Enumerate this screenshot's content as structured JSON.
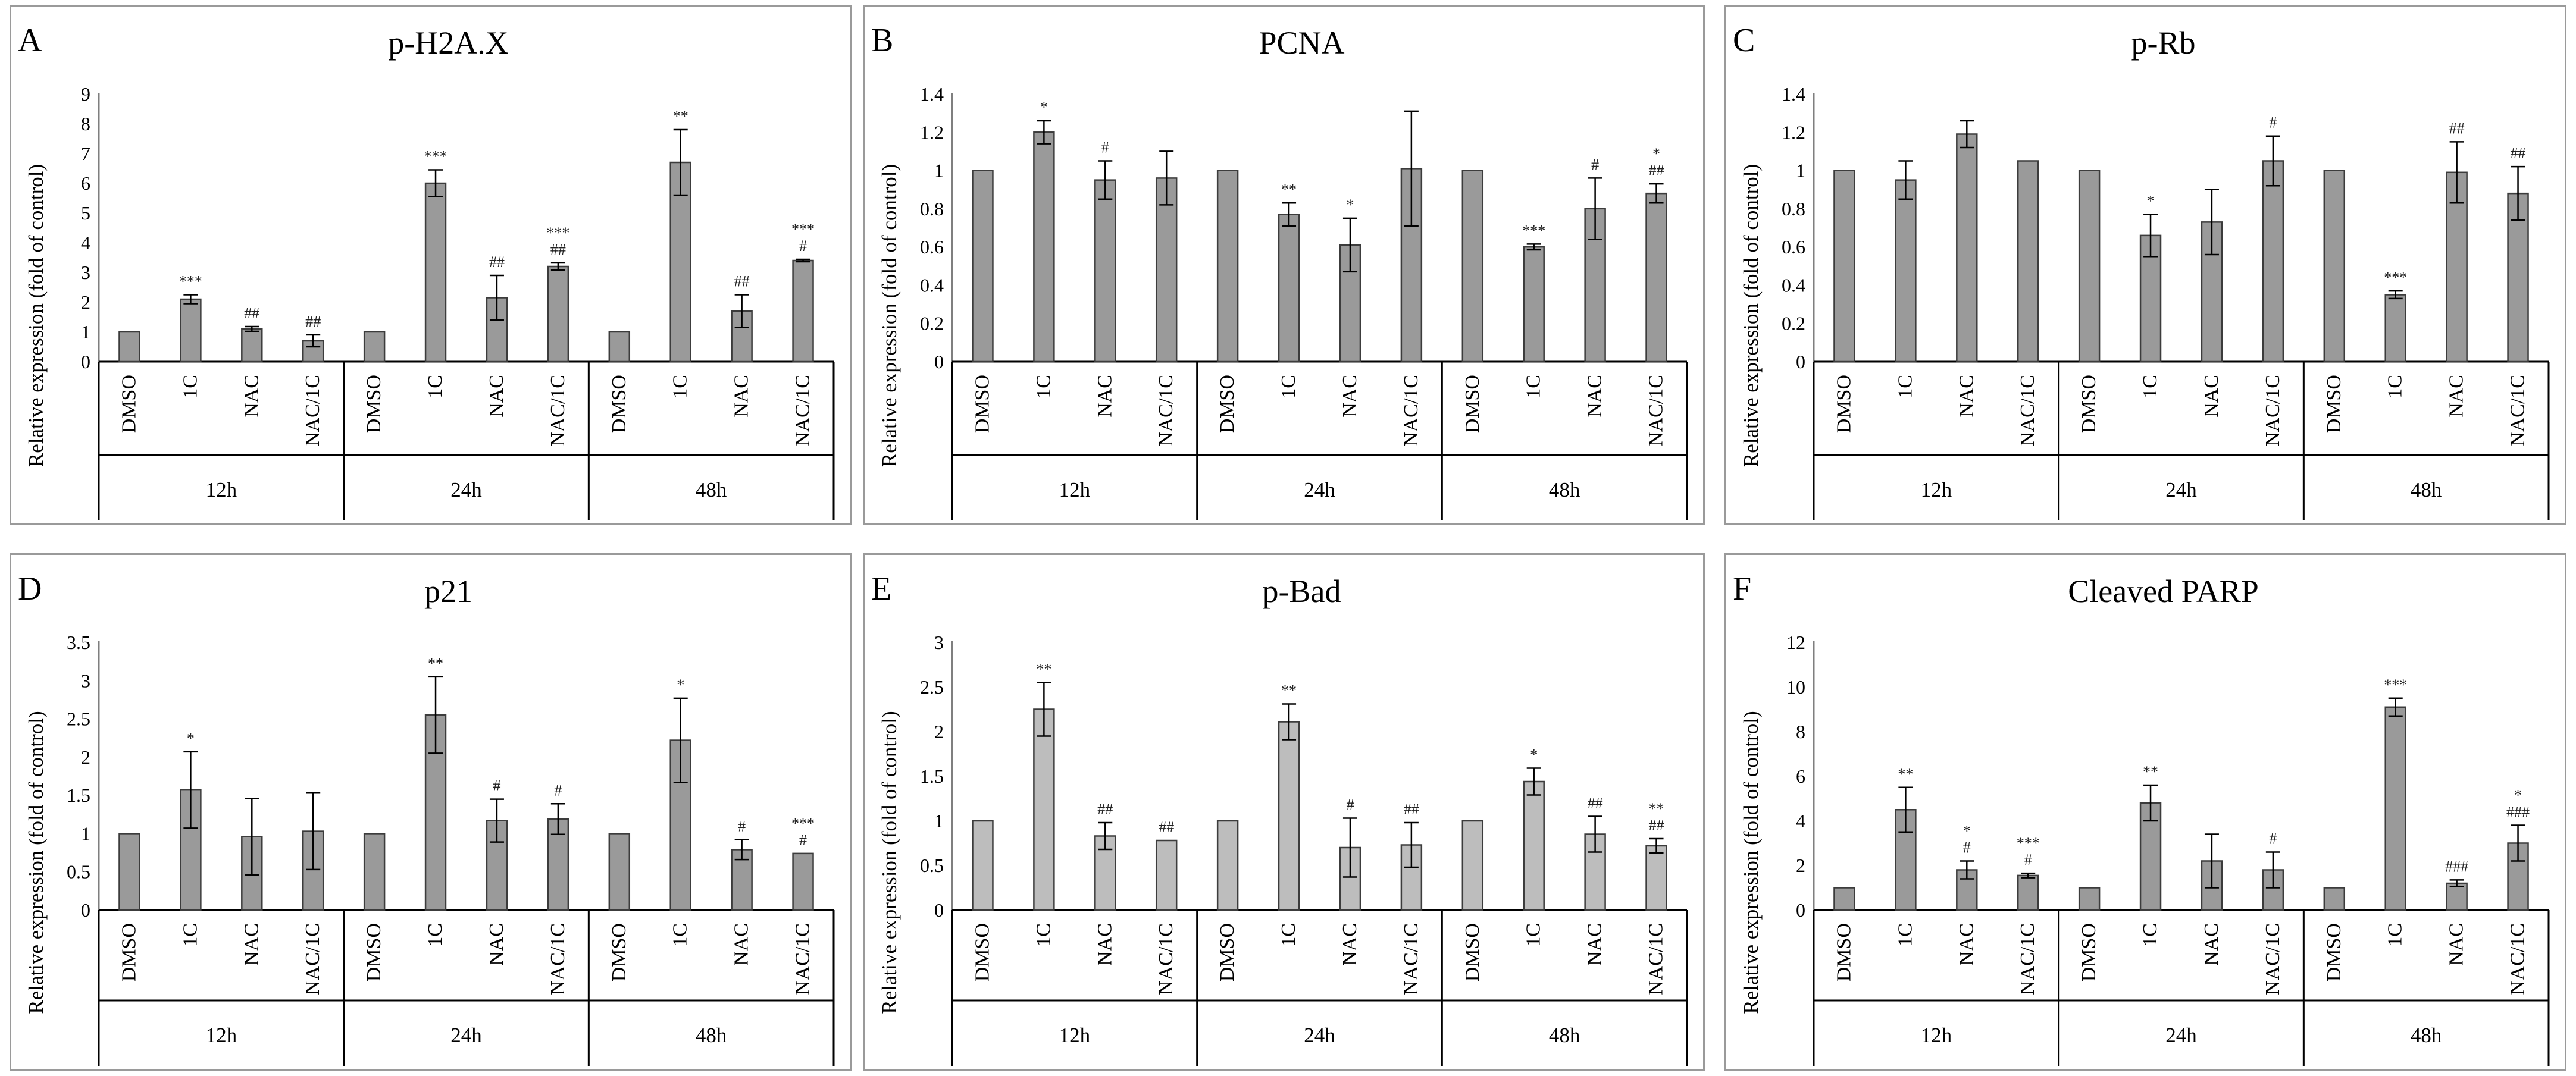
{
  "figure": {
    "groups": [
      "12h",
      "24h",
      "48h"
    ],
    "conditions": [
      "DMSO",
      "1C",
      "NAC",
      "NAC/1C"
    ],
    "ylabel": "Relative expression (fold of control)"
  },
  "chart_data": [
    {
      "panel": "A",
      "type": "bar",
      "title": "p-H2A.X",
      "ylabel": "Relative expression (fold of control)",
      "ylim": [
        0,
        9
      ],
      "yticks": [
        "0",
        "1",
        "2",
        "3",
        "4",
        "5",
        "6",
        "7",
        "8",
        "9"
      ],
      "groups": [
        "12h",
        "24h",
        "48h"
      ],
      "categories": [
        "DMSO",
        "1C",
        "NAC",
        "NAC/1C",
        "DMSO",
        "1C",
        "NAC",
        "NAC/1C",
        "DMSO",
        "1C",
        "NAC",
        "NAC/1C"
      ],
      "values": [
        1.0,
        2.1,
        1.1,
        0.7,
        1.0,
        6.0,
        2.15,
        3.2,
        1.0,
        6.7,
        1.7,
        3.4
      ],
      "errors": [
        0,
        0.15,
        0.08,
        0.2,
        0,
        0.45,
        0.75,
        0.12,
        0,
        1.1,
        0.55,
        0.04
      ],
      "annotations": [
        [],
        [
          "***"
        ],
        [
          "##"
        ],
        [
          "##"
        ],
        [],
        [
          "***"
        ],
        [
          "##"
        ],
        [
          "***",
          "##"
        ],
        [],
        [
          "**"
        ],
        [
          "##"
        ],
        [
          "***",
          "#"
        ]
      ],
      "bar_color": "#9a9a9a"
    },
    {
      "panel": "B",
      "type": "bar",
      "title": "PCNA",
      "ylabel": "Relative expression (fold of control)",
      "ylim": [
        0,
        1.4
      ],
      "yticks": [
        "0",
        "0.2",
        "0.4",
        "0.6",
        "0.8",
        "1",
        "1.2",
        "1.4"
      ],
      "groups": [
        "12h",
        "24h",
        "48h"
      ],
      "categories": [
        "DMSO",
        "1C",
        "NAC",
        "NAC/1C",
        "DMSO",
        "1C",
        "NAC",
        "NAC/1C",
        "DMSO",
        "1C",
        "NAC",
        "NAC/1C"
      ],
      "values": [
        1.0,
        1.2,
        0.95,
        0.96,
        1.0,
        0.77,
        0.61,
        1.01,
        1.0,
        0.6,
        0.8,
        0.88
      ],
      "errors": [
        0,
        0.06,
        0.1,
        0.14,
        0,
        0.06,
        0.14,
        0.3,
        0,
        0.015,
        0.16,
        0.05
      ],
      "annotations": [
        [],
        [
          "*"
        ],
        [
          "#"
        ],
        [],
        [],
        [
          "**"
        ],
        [
          "*"
        ],
        [],
        [],
        [
          "***"
        ],
        [
          "#"
        ],
        [
          "*",
          "##"
        ]
      ],
      "bar_color": "#9a9a9a"
    },
    {
      "panel": "C",
      "type": "bar",
      "title": "p-Rb",
      "ylabel": "Relative expression (fold of control)",
      "ylim": [
        0,
        1.4
      ],
      "yticks": [
        "0",
        "0.2",
        "0.4",
        "0.6",
        "0.8",
        "1",
        "1.2",
        "1.4"
      ],
      "groups": [
        "12h",
        "24h",
        "48h"
      ],
      "categories": [
        "DMSO",
        "1C",
        "NAC",
        "NAC/1C",
        "DMSO",
        "1C",
        "NAC",
        "NAC/1C",
        "DMSO",
        "1C",
        "NAC",
        "NAC/1C"
      ],
      "values": [
        1.0,
        0.95,
        1.19,
        1.05,
        1.0,
        0.66,
        0.73,
        1.05,
        1.0,
        0.35,
        0.99,
        0.88
      ],
      "errors": [
        0,
        0.1,
        0.07,
        0,
        0,
        0.11,
        0.17,
        0.13,
        0,
        0.02,
        0.16,
        0.14
      ],
      "annotations": [
        [],
        [],
        [],
        [],
        [],
        [
          "*"
        ],
        [],
        [
          "#"
        ],
        [],
        [
          "***"
        ],
        [
          "##"
        ],
        [
          "##"
        ]
      ],
      "bar_color": "#9a9a9a"
    },
    {
      "panel": "D",
      "type": "bar",
      "title": "p21",
      "ylabel": "Relative expression (fold of control)",
      "ylim": [
        0,
        3.5
      ],
      "yticks": [
        "0",
        "0.5",
        "1",
        "1.5",
        "2",
        "2.5",
        "3",
        "3.5"
      ],
      "groups": [
        "12h",
        "24h",
        "48h"
      ],
      "categories": [
        "DMSO",
        "1C",
        "NAC",
        "NAC/1C",
        "DMSO",
        "1C",
        "NAC",
        "NAC/1C",
        "DMSO",
        "1C",
        "NAC",
        "NAC/1C"
      ],
      "values": [
        1.0,
        1.57,
        0.96,
        1.03,
        1.0,
        2.55,
        1.17,
        1.19,
        1.0,
        2.22,
        0.79,
        0.74
      ],
      "errors": [
        0,
        0.5,
        0.5,
        0.5,
        0,
        0.5,
        0.28,
        0.2,
        0,
        0.55,
        0.13,
        0
      ],
      "annotations": [
        [],
        [
          "*"
        ],
        [],
        [],
        [],
        [
          "**"
        ],
        [
          "#"
        ],
        [
          "#"
        ],
        [],
        [
          "*"
        ],
        [
          "#"
        ],
        [
          "***",
          "#"
        ]
      ],
      "bar_color": "#9a9a9a"
    },
    {
      "panel": "E",
      "type": "bar",
      "title": "p-Bad",
      "ylabel": "Relative expression (fold of control)",
      "ylim": [
        0,
        3
      ],
      "yticks": [
        "0",
        "0.5",
        "1",
        "1.5",
        "2",
        "2.5",
        "3"
      ],
      "groups": [
        "12h",
        "24h",
        "48h"
      ],
      "categories": [
        "DMSO",
        "1C",
        "NAC",
        "NAC/1C",
        "DMSO",
        "1C",
        "NAC",
        "NAC/1C",
        "DMSO",
        "1C",
        "NAC",
        "NAC/1C"
      ],
      "values": [
        1.0,
        2.25,
        0.83,
        0.78,
        1.0,
        2.11,
        0.7,
        0.73,
        1.0,
        1.44,
        0.85,
        0.72
      ],
      "errors": [
        0,
        0.3,
        0.15,
        0,
        0,
        0.2,
        0.33,
        0.25,
        0,
        0.15,
        0.2,
        0.08
      ],
      "annotations": [
        [],
        [
          "**"
        ],
        [
          "##"
        ],
        [
          "##"
        ],
        [],
        [
          "**"
        ],
        [
          "#"
        ],
        [
          "##"
        ],
        [],
        [
          "*"
        ],
        [
          "##"
        ],
        [
          "**",
          "##"
        ]
      ],
      "bar_color": "#bdbdbd"
    },
    {
      "panel": "F",
      "type": "bar",
      "title": "Cleaved PARP",
      "ylabel": "Relative expression (fold of control)",
      "ylim": [
        0,
        12
      ],
      "yticks": [
        "0",
        "2",
        "4",
        "6",
        "8",
        "10",
        "12"
      ],
      "groups": [
        "12h",
        "24h",
        "48h"
      ],
      "categories": [
        "DMSO",
        "1C",
        "NAC",
        "NAC/1C",
        "DMSO",
        "1C",
        "NAC",
        "NAC/1C",
        "DMSO",
        "1C",
        "NAC",
        "NAC/1C"
      ],
      "values": [
        1.0,
        4.5,
        1.8,
        1.55,
        1.0,
        4.8,
        2.2,
        1.8,
        1.0,
        9.1,
        1.2,
        3.0
      ],
      "errors": [
        0,
        1.0,
        0.4,
        0.1,
        0,
        0.8,
        1.2,
        0.8,
        0,
        0.4,
        0.15,
        0.8
      ],
      "annotations": [
        [],
        [
          "**"
        ],
        [
          "*",
          "#"
        ],
        [
          "***",
          "#"
        ],
        [],
        [
          "**"
        ],
        [],
        [
          "#"
        ],
        [],
        [
          "***"
        ],
        [
          "###"
        ],
        [
          "*",
          "###"
        ]
      ],
      "bar_color": "#9a9a9a"
    }
  ]
}
